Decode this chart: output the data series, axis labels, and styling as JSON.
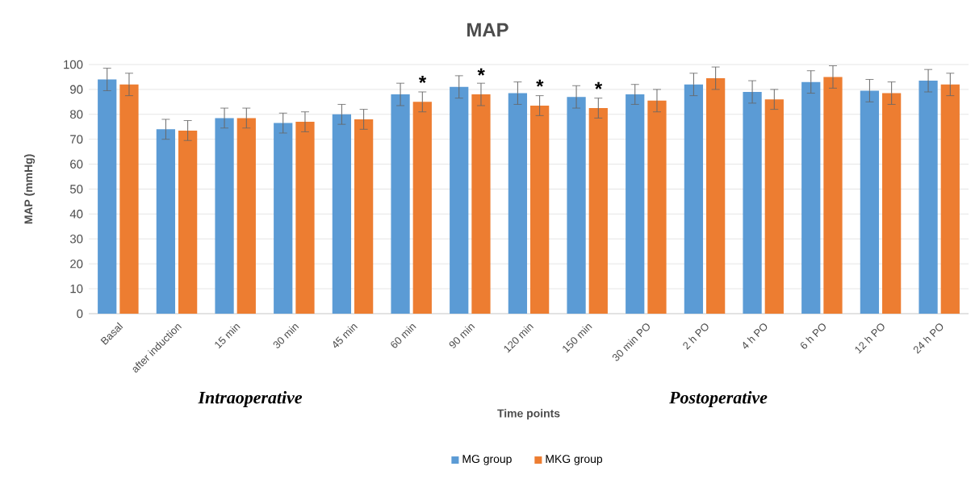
{
  "chart_data": {
    "type": "bar",
    "title": "MAP",
    "xlabel": "Time points",
    "ylabel": "MAP (mmHg)",
    "categories": [
      "Basal",
      "after induction",
      "15 min",
      "30 min",
      "45 min",
      "60 min",
      "90 min",
      "120 min",
      "150 min",
      "30 min PO",
      "2 h PO",
      "4 h PO",
      "6 h PO",
      "12 h PO",
      "24 h PO"
    ],
    "series": [
      {
        "name": "MG group",
        "color": "#5b9bd5",
        "values": [
          94,
          74,
          78.5,
          76.5,
          80,
          88,
          91,
          88.5,
          87,
          88,
          92,
          89,
          93,
          89.5,
          93.5
        ],
        "errors": [
          4.5,
          4,
          4,
          4,
          4,
          4.5,
          4.5,
          4.5,
          4.5,
          4,
          4.5,
          4.5,
          4.5,
          4.5,
          4.5
        ]
      },
      {
        "name": "MKG  group",
        "color": "#ed7d31",
        "values": [
          92,
          73.5,
          78.5,
          77,
          78,
          85,
          88,
          83.5,
          82.5,
          85.5,
          94.5,
          86,
          95,
          88.5,
          92
        ],
        "errors": [
          4.5,
          4,
          4,
          4,
          4,
          4,
          4.5,
          4,
          4,
          4.5,
          4.5,
          4,
          4.5,
          4.5,
          4.5
        ]
      }
    ],
    "ylim": [
      0,
      100
    ],
    "yticks": [
      0,
      10,
      20,
      30,
      40,
      50,
      60,
      70,
      80,
      90,
      100
    ],
    "grid": "y",
    "legend": "bottom",
    "annotations": [
      {
        "text": "*",
        "x": "60 min",
        "y": 90
      },
      {
        "text": "*",
        "x": "90 min",
        "y": 93
      },
      {
        "text": "*",
        "x": "120 min",
        "y": 88.5
      },
      {
        "text": "*",
        "x": "150 min",
        "y": 87.5
      },
      "Intraoperative",
      "Postoperative"
    ]
  }
}
